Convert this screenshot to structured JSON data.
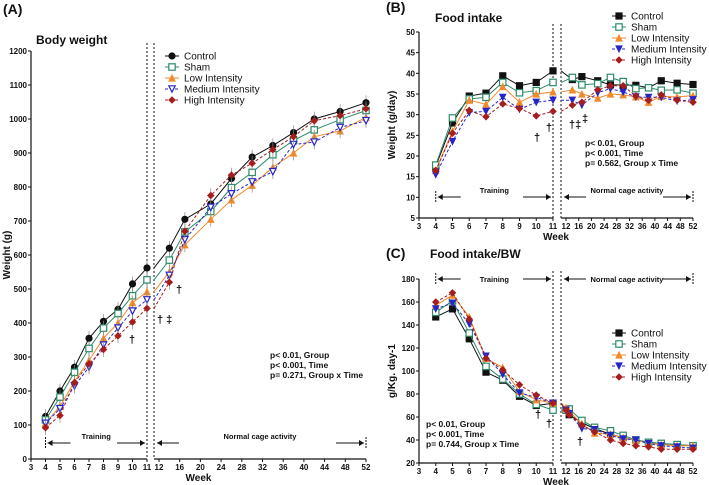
{
  "chart_data": [
    {
      "type": "line",
      "panel_label": "(A)",
      "title": "Body weight",
      "xlabel": "Week",
      "ylabel": "Weight (g)",
      "ylim": [
        0,
        1200
      ],
      "yticks": [
        0,
        100,
        200,
        300,
        400,
        500,
        600,
        700,
        800,
        900,
        1000,
        1100,
        1200
      ],
      "xticks_left": [
        3,
        4,
        5,
        6,
        7,
        8,
        9,
        10,
        11
      ],
      "xticks_right": [
        12,
        16,
        20,
        24,
        28,
        32,
        36,
        40,
        44,
        48,
        52
      ],
      "x": [
        4,
        5,
        6,
        7,
        8,
        9,
        10,
        11,
        14,
        17,
        22,
        26,
        30,
        34,
        38,
        42,
        47,
        52
      ],
      "series": [
        {
          "name": "Control",
          "color": "#111111",
          "marker": "circle",
          "values": [
            125,
            200,
            270,
            355,
            405,
            440,
            515,
            562,
            620,
            705,
            750,
            825,
            888,
            922,
            960,
            1000,
            1022,
            1048
          ]
        },
        {
          "name": "Sham",
          "color": "#2e8b6a",
          "marker": "square-open",
          "values": [
            115,
            182,
            255,
            325,
            385,
            428,
            480,
            527,
            585,
            668,
            728,
            798,
            843,
            895,
            937,
            968,
            998,
            1025
          ]
        },
        {
          "name": "Low Intensity",
          "color": "#f08a2c",
          "marker": "triangle",
          "values": [
            105,
            155,
            228,
            290,
            355,
            400,
            460,
            492,
            550,
            630,
            705,
            762,
            805,
            858,
            900,
            948,
            965,
            1005
          ]
        },
        {
          "name": "Medium Intensity",
          "color": "#2626c8",
          "marker": "triangle-down-open",
          "values": [
            105,
            148,
            215,
            270,
            335,
            385,
            435,
            468,
            540,
            645,
            740,
            780,
            815,
            845,
            925,
            932,
            975,
            995
          ]
        },
        {
          "name": "High Intensity",
          "color": "#a51d1d",
          "marker": "diamond",
          "values": [
            92,
            128,
            225,
            280,
            322,
            362,
            403,
            443,
            520,
            670,
            775,
            835,
            870,
            910,
            948,
            995,
            1010,
            1030
          ]
        }
      ],
      "stats": [
        "p< 0.01, Group",
        "p< 0.001, Time",
        "p= 0.271, Group x Time"
      ],
      "phases": [
        "Training",
        "Normal cage activity"
      ],
      "annotations": [
        "†",
        "† ‡",
        "†"
      ],
      "legend": "top-center"
    },
    {
      "type": "line",
      "panel_label": "(B)",
      "title": "Food intake",
      "xlabel": "Week",
      "ylabel": "Weight (g/day)",
      "ylim": [
        5,
        50
      ],
      "yticks": [
        5,
        10,
        15,
        20,
        25,
        30,
        35,
        40,
        45,
        50
      ],
      "xticks_left": [
        3,
        4,
        5,
        6,
        7,
        8,
        9,
        10,
        11
      ],
      "xticks_right": [
        12,
        16,
        20,
        24,
        28,
        32,
        36,
        40,
        44,
        48,
        52
      ],
      "x": [
        4,
        5,
        6,
        7,
        8,
        9,
        10,
        11,
        14,
        17,
        22,
        26,
        30,
        34,
        38,
        42,
        47,
        52
      ],
      "series": [
        {
          "name": "Control",
          "color": "#111111",
          "marker": "square",
          "values": [
            17.5,
            28,
            34.5,
            35.2,
            39.4,
            37,
            37.8,
            40.6,
            38.5,
            39.2,
            38.2,
            37.2,
            37.2,
            37.1,
            36.5,
            38.2,
            37.6,
            37.3
          ]
        },
        {
          "name": "Sham",
          "color": "#2e8b6a",
          "marker": "square-open",
          "values": [
            17.8,
            29.2,
            33.8,
            34.2,
            37.8,
            35.3,
            35.8,
            37.8,
            39,
            37.2,
            37.5,
            39,
            38,
            36.3,
            36.5,
            35.9,
            36,
            35.2
          ]
        },
        {
          "name": "Low Intensity",
          "color": "#f08a2c",
          "marker": "triangle",
          "values": [
            16.5,
            26,
            33.5,
            32.5,
            36.8,
            33,
            35,
            35.5,
            36,
            35,
            34,
            35,
            34.8,
            34.3,
            33,
            34.4,
            34.3,
            34.6
          ]
        },
        {
          "name": "Medium Intensity",
          "color": "#2626c8",
          "marker": "triangle-down",
          "values": [
            15.5,
            23.5,
            30.5,
            30.8,
            34.2,
            31.3,
            33,
            33.5,
            33.5,
            32.3,
            35.3,
            36.3,
            35.5,
            34.3,
            34.2,
            34.2,
            33.3,
            33.6
          ]
        },
        {
          "name": "High Intensity",
          "color": "#a51d1d",
          "marker": "diamond",
          "values": [
            16.5,
            25.5,
            31,
            29.5,
            32.6,
            31.5,
            29.7,
            30.8,
            32.3,
            33,
            36,
            37,
            37,
            34.5,
            33.5,
            34.8,
            33.5,
            33
          ]
        }
      ],
      "stats": [
        "p< 0.01, Group",
        "p< 0.001, Time",
        "p= 0.562, Group x Time"
      ],
      "phases": [
        "Training",
        "Normal cage activity"
      ],
      "annotations": [
        "†",
        "†",
        "†‡",
        "‡"
      ],
      "legend": "top-right"
    },
    {
      "type": "line",
      "panel_label": "(C)",
      "title": "Food intake/BW",
      "xlabel": "Week",
      "ylabel": "g/Kg. day-1",
      "ylim": [
        20,
        180
      ],
      "yticks": [
        20,
        40,
        60,
        80,
        100,
        120,
        140,
        160,
        180
      ],
      "xticks_left": [
        3,
        4,
        5,
        6,
        7,
        8,
        9,
        10,
        11
      ],
      "xticks_right": [
        12,
        16,
        20,
        24,
        28,
        32,
        36,
        40,
        44,
        48,
        52
      ],
      "x": [
        4,
        5,
        6,
        7,
        8,
        9,
        10,
        11,
        12,
        13,
        17,
        21,
        26,
        30,
        34,
        38,
        42,
        47,
        52
      ],
      "series": [
        {
          "name": "Control",
          "color": "#111111",
          "marker": "square",
          "values": [
            147,
            154,
            128,
            99,
            92,
            78,
            70,
            72,
            66,
            62,
            55,
            50,
            45,
            42,
            40,
            38,
            37,
            36,
            35
          ]
        },
        {
          "name": "Sham",
          "color": "#2e8b6a",
          "marker": "square-open",
          "values": [
            151,
            161,
            133,
            104,
            93,
            80,
            71,
            66,
            66,
            67,
            57,
            51,
            48,
            44,
            40,
            38,
            37,
            36,
            35
          ]
        },
        {
          "name": "Low Intensity",
          "color": "#f08a2c",
          "marker": "triangle",
          "values": [
            157,
            166,
            147,
            111,
            103,
            82,
            75,
            72,
            68,
            65,
            54,
            46,
            45,
            42,
            40,
            37,
            36,
            35,
            35
          ]
        },
        {
          "name": "Medium Intensity",
          "color": "#2626c8",
          "marker": "triangle-down",
          "values": [
            154,
            159,
            141,
            113,
            97,
            81,
            77,
            72,
            66,
            63,
            50,
            49,
            44,
            41,
            40,
            37,
            35,
            34,
            33
          ]
        },
        {
          "name": "High Intensity",
          "color": "#a51d1d",
          "marker": "diamond",
          "values": [
            160,
            168,
            145,
            111,
            101,
            88,
            79,
            72,
            66,
            62,
            53,
            47,
            40,
            37,
            35,
            34,
            32,
            32,
            32
          ]
        }
      ],
      "stats": [
        "p< 0.01, Group",
        "p< 0.001, Time",
        "p= 0.744, Group x Time"
      ],
      "phases": [
        "Training",
        "Normal cage activity"
      ],
      "annotations": [
        "†",
        "†",
        "†"
      ],
      "legend": "center-right"
    }
  ]
}
